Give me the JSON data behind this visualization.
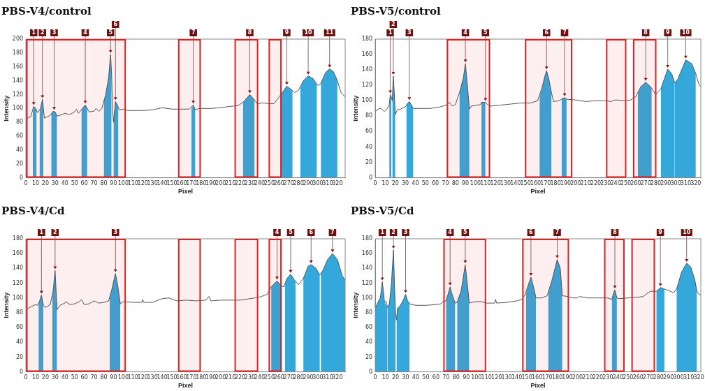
{
  "chart_data": [
    {
      "type": "line",
      "title": "PBS-V4/control",
      "xlabel": "Pixel",
      "ylabel": "Intensity",
      "legend": false,
      "xlim": [
        0,
        328
      ],
      "xticks": [
        0,
        10,
        20,
        30,
        40,
        50,
        60,
        70,
        80,
        90,
        100,
        110,
        120,
        130,
        140,
        150,
        160,
        170,
        180,
        190,
        200,
        210,
        220,
        230,
        240,
        250,
        260,
        270,
        280,
        290,
        300,
        310,
        320
      ],
      "ylim": [
        0,
        200
      ],
      "yticks": [
        0,
        20,
        40,
        60,
        80,
        100,
        120,
        140,
        160,
        180,
        200
      ],
      "bands": [
        {
          "axis": "x",
          "from": 1,
          "to": 102,
          "color": "#e02020"
        },
        {
          "axis": "x",
          "from": 157,
          "to": 179,
          "color": "#e02020"
        },
        {
          "axis": "x",
          "from": 215,
          "to": 238,
          "color": "#e02020"
        },
        {
          "axis": "x",
          "from": 250,
          "to": 262,
          "color": "#e02020"
        }
      ],
      "annotations": [
        {
          "text": "1",
          "x": 8,
          "y": 103
        },
        {
          "text": "2",
          "x": 17,
          "y": 113
        },
        {
          "text": "3",
          "x": 29,
          "y": 96
        },
        {
          "text": "4",
          "x": 61,
          "y": 105
        },
        {
          "text": "5",
          "x": 87,
          "y": 178
        },
        {
          "text": "6",
          "x": 92,
          "y": 110
        },
        {
          "text": "7",
          "x": 172,
          "y": 105
        },
        {
          "text": "8",
          "x": 230,
          "y": 120
        },
        {
          "text": "9",
          "x": 268,
          "y": 132
        },
        {
          "text": "10",
          "x": 290,
          "y": 147
        },
        {
          "text": "11",
          "x": 312,
          "y": 157
        }
      ],
      "series": [
        {
          "type": "line",
          "color": "#555555",
          "x": [
            0,
            5,
            8,
            10,
            12,
            15,
            17,
            18,
            19,
            22,
            25,
            28,
            30,
            32,
            35,
            40,
            45,
            50,
            52,
            54,
            58,
            61,
            63,
            65,
            70,
            72,
            75,
            78,
            82,
            85,
            87,
            88,
            89,
            90,
            92,
            94,
            96,
            100,
            105,
            120,
            130,
            140,
            150,
            160,
            168,
            172,
            174,
            178,
            190,
            200,
            210,
            218,
            224,
            230,
            235,
            238,
            242,
            250,
            255,
            262,
            268,
            272,
            276,
            280,
            285,
            290,
            295,
            300,
            303,
            308,
            312,
            316,
            320,
            324,
            328
          ],
          "values": [
            85,
            88,
            103,
            100,
            94,
            100,
            113,
            100,
            86,
            88,
            90,
            96,
            95,
            89,
            90,
            93,
            91,
            95,
            99,
            93,
            100,
            105,
            100,
            95,
            96,
            100,
            96,
            100,
            120,
            145,
            178,
            150,
            100,
            80,
            110,
            105,
            98,
            99,
            97,
            97,
            98,
            101,
            99,
            99,
            99,
            105,
            98,
            100,
            100,
            101,
            103,
            104,
            110,
            120,
            112,
            106,
            108,
            107,
            107,
            120,
            132,
            128,
            123,
            126,
            140,
            147,
            143,
            133,
            136,
            152,
            157,
            153,
            140,
            122,
            117
          ]
        },
        {
          "type": "area",
          "color": "#35a8db",
          "x": [
            7,
            8,
            10,
            11
          ],
          "values": [
            95,
            103,
            100,
            96
          ]
        },
        {
          "type": "area",
          "color": "#35a8db",
          "x": [
            14,
            15,
            17,
            18
          ],
          "values": [
            96,
            100,
            113,
            100
          ]
        },
        {
          "type": "area",
          "color": "#35a8db",
          "x": [
            26,
            28,
            30,
            32
          ],
          "values": [
            92,
            96,
            95,
            89
          ]
        },
        {
          "type": "area",
          "color": "#35a8db",
          "x": [
            57,
            58,
            61,
            63
          ],
          "values": [
            98,
            100,
            105,
            100
          ]
        },
        {
          "type": "area",
          "color": "#35a8db",
          "x": [
            80,
            82,
            85,
            87,
            88
          ],
          "values": [
            110,
            120,
            145,
            178,
            150
          ]
        },
        {
          "type": "area",
          "color": "#35a8db",
          "x": [
            90,
            92,
            94,
            95
          ],
          "values": [
            85,
            110,
            105,
            100
          ]
        },
        {
          "type": "area",
          "color": "#35a8db",
          "x": [
            170,
            172,
            174
          ],
          "values": [
            99,
            105,
            98
          ]
        },
        {
          "type": "area",
          "color": "#35a8db",
          "x": [
            223,
            224,
            230,
            235
          ],
          "values": [
            108,
            110,
            120,
            112
          ]
        },
        {
          "type": "area",
          "color": "#35a8db",
          "x": [
            262,
            268,
            272,
            274
          ],
          "values": [
            120,
            132,
            128,
            125
          ]
        },
        {
          "type": "area",
          "color": "#35a8db",
          "x": [
            282,
            285,
            290,
            295,
            299
          ],
          "values": [
            130,
            140,
            147,
            143,
            134
          ]
        },
        {
          "type": "area",
          "color": "#35a8db",
          "x": [
            303,
            308,
            312,
            316,
            320
          ],
          "values": [
            136,
            152,
            157,
            153,
            140
          ]
        }
      ]
    },
    {
      "type": "line",
      "title": "PBS-V5/control",
      "xlabel": "Pixel",
      "ylabel": "Intensity",
      "legend": false,
      "xlim": [
        0,
        325
      ],
      "xticks": [
        0,
        10,
        20,
        30,
        40,
        50,
        60,
        70,
        80,
        90,
        100,
        110,
        120,
        130,
        140,
        150,
        160,
        170,
        180,
        190,
        200,
        210,
        220,
        230,
        240,
        250,
        260,
        270,
        280,
        290,
        300,
        310,
        320
      ],
      "ylim": [
        0,
        180
      ],
      "yticks": [
        0,
        20,
        40,
        60,
        80,
        100,
        120,
        140,
        160,
        180
      ],
      "bands": [
        {
          "axis": "x",
          "from": 72,
          "to": 114,
          "color": "#e02020"
        },
        {
          "axis": "x",
          "from": 150,
          "to": 196,
          "color": "#e02020"
        },
        {
          "axis": "x",
          "from": 231,
          "to": 250,
          "color": "#e02020"
        },
        {
          "axis": "x",
          "from": 258,
          "to": 280,
          "color": "#e02020"
        }
      ],
      "annotations": [
        {
          "text": "1",
          "x": 15,
          "y": 108
        },
        {
          "text": "2",
          "x": 18,
          "y": 132
        },
        {
          "text": "3",
          "x": 34,
          "y": 99
        },
        {
          "text": "4",
          "x": 90,
          "y": 148
        },
        {
          "text": "5",
          "x": 110,
          "y": 98
        },
        {
          "text": "6",
          "x": 171,
          "y": 139
        },
        {
          "text": "7",
          "x": 189,
          "y": 104
        },
        {
          "text": "8",
          "x": 270,
          "y": 124
        },
        {
          "text": "9",
          "x": 292,
          "y": 141
        },
        {
          "text": "10",
          "x": 310,
          "y": 153
        }
      ],
      "series": [
        {
          "type": "line",
          "color": "#555555",
          "x": [
            0,
            4,
            6,
            9,
            12,
            14,
            15,
            16,
            17,
            18,
            19,
            20,
            22,
            25,
            30,
            34,
            38,
            45,
            55,
            65,
            72,
            74,
            77,
            80,
            84,
            88,
            90,
            92,
            94,
            96,
            105,
            106,
            110,
            112,
            115,
            130,
            145,
            155,
            162,
            166,
            170,
            171,
            173,
            176,
            178,
            184,
            187,
            189,
            191,
            200,
            210,
            220,
            230,
            235,
            240,
            250,
            255,
            260,
            265,
            270,
            275,
            280,
            285,
            292,
            296,
            299,
            302,
            310,
            316,
            320,
            323,
            325
          ],
          "values": [
            86,
            90,
            90,
            86,
            90,
            95,
            108,
            105,
            100,
            132,
            110,
            82,
            88,
            89,
            92,
            99,
            90,
            90,
            90,
            92,
            95,
            98,
            93,
            95,
            110,
            130,
            148,
            120,
            89,
            93,
            95,
            98,
            98,
            95,
            93,
            95,
            97,
            97,
            100,
            115,
            135,
            139,
            130,
            110,
            99,
            100,
            103,
            104,
            102,
            101,
            99,
            100,
            100,
            99,
            101,
            100,
            101,
            105,
            118,
            124,
            118,
            108,
            115,
            141,
            135,
            123,
            128,
            153,
            148,
            135,
            122,
            118
          ]
        },
        {
          "type": "area",
          "color": "#35a8db",
          "x": [
            14,
            15,
            16
          ],
          "values": [
            95,
            108,
            105
          ]
        },
        {
          "type": "area",
          "color": "#35a8db",
          "x": [
            17,
            18,
            19,
            20
          ],
          "values": [
            100,
            132,
            110,
            82
          ]
        },
        {
          "type": "area",
          "color": "#35a8db",
          "x": [
            31,
            34,
            38
          ],
          "values": [
            95,
            99,
            90
          ]
        },
        {
          "type": "area",
          "color": "#35a8db",
          "x": [
            84,
            88,
            90,
            92,
            94
          ],
          "values": [
            110,
            130,
            148,
            120,
            89
          ]
        },
        {
          "type": "area",
          "color": "#35a8db",
          "x": [
            106,
            110
          ],
          "values": [
            98,
            98
          ]
        },
        {
          "type": "area",
          "color": "#35a8db",
          "x": [
            164,
            166,
            170,
            171,
            173,
            176
          ],
          "values": [
            105,
            115,
            135,
            139,
            130,
            110
          ]
        },
        {
          "type": "area",
          "color": "#35a8db",
          "x": [
            186,
            187,
            189,
            191
          ],
          "values": [
            102,
            103,
            104,
            102
          ]
        },
        {
          "type": "area",
          "color": "#35a8db",
          "x": [
            262,
            265,
            270,
            275,
            276
          ],
          "values": [
            110,
            118,
            124,
            118,
            115
          ]
        },
        {
          "type": "area",
          "color": "#35a8db",
          "x": [
            285,
            292,
            296,
            299
          ],
          "values": [
            115,
            141,
            135,
            123
          ]
        },
        {
          "type": "area",
          "color": "#35a8db",
          "x": [
            299,
            302,
            310,
            316,
            320
          ],
          "values": [
            123,
            128,
            153,
            148,
            135
          ]
        }
      ]
    },
    {
      "type": "line",
      "title": "PBS-V4/Cd",
      "xlabel": "Pixel",
      "ylabel": "Intensity",
      "legend": false,
      "xlim": [
        0,
        328
      ],
      "xticks": [
        0,
        10,
        20,
        30,
        40,
        50,
        60,
        70,
        80,
        90,
        100,
        110,
        120,
        130,
        140,
        150,
        160,
        170,
        180,
        190,
        200,
        210,
        220,
        230,
        240,
        250,
        260,
        270,
        280,
        290,
        300,
        310,
        320
      ],
      "ylim": [
        0,
        180
      ],
      "yticks": [
        0,
        20,
        40,
        60,
        80,
        100,
        120,
        140,
        160,
        180
      ],
      "bands": [
        {
          "axis": "x",
          "from": 1,
          "to": 102,
          "color": "#e02020"
        },
        {
          "axis": "x",
          "from": 157,
          "to": 179,
          "color": "#e02020"
        },
        {
          "axis": "x",
          "from": 215,
          "to": 238,
          "color": "#e02020"
        },
        {
          "axis": "x",
          "from": 250,
          "to": 262,
          "color": "#e02020"
        }
      ],
      "annotations": [
        {
          "text": "1",
          "x": 16,
          "y": 104
        },
        {
          "text": "2",
          "x": 30,
          "y": 137
        },
        {
          "text": "3",
          "x": 92,
          "y": 133
        },
        {
          "text": "4",
          "x": 258,
          "y": 123
        },
        {
          "text": "5",
          "x": 272,
          "y": 132
        },
        {
          "text": "6",
          "x": 293,
          "y": 145
        },
        {
          "text": "7",
          "x": 315,
          "y": 160
        }
      ],
      "series": [
        {
          "type": "line",
          "color": "#555555",
          "x": [
            0,
            5,
            10,
            12,
            14,
            16,
            18,
            20,
            25,
            28,
            30,
            31,
            32,
            35,
            40,
            41,
            45,
            50,
            55,
            57,
            60,
            65,
            70,
            75,
            80,
            85,
            88,
            92,
            94,
            97,
            100,
            110,
            119,
            120,
            121,
            130,
            140,
            147,
            155,
            165,
            175,
            185,
            188,
            190,
            200,
            210,
            220,
            230,
            240,
            248,
            252,
            258,
            262,
            265,
            268,
            272,
            276,
            280,
            285,
            290,
            293,
            298,
            302,
            305,
            310,
            315,
            320,
            325,
            328
          ],
          "values": [
            84,
            88,
            91,
            90,
            95,
            104,
            90,
            87,
            91,
            110,
            137,
            110,
            84,
            90,
            93,
            95,
            91,
            92,
            95,
            98,
            91,
            92,
            96,
            93,
            94,
            96,
            110,
            133,
            120,
            92,
            95,
            94,
            94,
            98,
            94,
            94,
            99,
            100,
            96,
            97,
            96,
            97,
            102,
            96,
            97,
            97,
            97,
            99,
            101,
            105,
            115,
            123,
            117,
            115,
            126,
            132,
            124,
            118,
            126,
            143,
            145,
            140,
            131,
            137,
            152,
            160,
            152,
            130,
            124
          ]
        },
        {
          "type": "area",
          "color": "#35a8db",
          "x": [
            13,
            16,
            18
          ],
          "values": [
            93,
            104,
            90
          ]
        },
        {
          "type": "area",
          "color": "#35a8db",
          "x": [
            27,
            28,
            30,
            31,
            32
          ],
          "values": [
            100,
            110,
            137,
            110,
            84
          ]
        },
        {
          "type": "area",
          "color": "#35a8db",
          "x": [
            86,
            88,
            92,
            94,
            97
          ],
          "values": [
            100,
            110,
            133,
            120,
            92
          ]
        },
        {
          "type": "area",
          "color": "#35a8db",
          "x": [
            252,
            258,
            262,
            263
          ],
          "values": [
            115,
            123,
            117,
            116
          ]
        },
        {
          "type": "area",
          "color": "#35a8db",
          "x": [
            266,
            268,
            272,
            276,
            277
          ],
          "values": [
            118,
            126,
            132,
            124,
            122
          ]
        },
        {
          "type": "area",
          "color": "#35a8db",
          "x": [
            285,
            290,
            293,
            298,
            302
          ],
          "values": [
            126,
            143,
            145,
            140,
            131
          ]
        },
        {
          "type": "area",
          "color": "#35a8db",
          "x": [
            303,
            305,
            310,
            315,
            320,
            325,
            328
          ],
          "values": [
            133,
            137,
            152,
            160,
            152,
            130,
            124
          ]
        }
      ]
    },
    {
      "type": "line",
      "title": "PBS-V5/Cd",
      "xlabel": "Pixel",
      "ylabel": "Intensity",
      "legend": false,
      "xlim": [
        0,
        322
      ],
      "xticks": [
        0,
        10,
        20,
        30,
        40,
        50,
        60,
        70,
        80,
        90,
        100,
        110,
        120,
        130,
        140,
        150,
        160,
        170,
        180,
        190,
        200,
        210,
        220,
        230,
        240,
        250,
        260,
        270,
        280,
        290,
        300,
        310,
        320
      ],
      "ylim": [
        0,
        180
      ],
      "yticks": [
        0,
        20,
        40,
        60,
        80,
        100,
        120,
        140,
        160,
        180
      ],
      "bands": [
        {
          "axis": "x",
          "from": 68,
          "to": 109,
          "color": "#e02020"
        },
        {
          "axis": "x",
          "from": 146,
          "to": 191,
          "color": "#e02020"
        },
        {
          "axis": "x",
          "from": 227,
          "to": 246,
          "color": "#e02020"
        },
        {
          "axis": "x",
          "from": 254,
          "to": 276,
          "color": "#e02020"
        }
      ],
      "annotations": [
        {
          "text": "1",
          "x": 7,
          "y": 122
        },
        {
          "text": "2",
          "x": 18,
          "y": 165
        },
        {
          "text": "3",
          "x": 30,
          "y": 105
        },
        {
          "text": "4",
          "x": 74,
          "y": 115
        },
        {
          "text": "5",
          "x": 89,
          "y": 145
        },
        {
          "text": "6",
          "x": 154,
          "y": 128
        },
        {
          "text": "7",
          "x": 180,
          "y": 152
        },
        {
          "text": "8",
          "x": 237,
          "y": 111
        },
        {
          "text": "9",
          "x": 282,
          "y": 114
        },
        {
          "text": "10",
          "x": 308,
          "y": 147
        }
      ],
      "series": [
        {
          "type": "line",
          "color": "#555555",
          "x": [
            0,
            3,
            5,
            7,
            8,
            9,
            11,
            12,
            14,
            16,
            18,
            19,
            20,
            21,
            22,
            25,
            28,
            30,
            32,
            34,
            40,
            50,
            60,
            65,
            67,
            70,
            72,
            74,
            76,
            79,
            81,
            85,
            89,
            91,
            93,
            95,
            100,
            105,
            110,
            118,
            119,
            120,
            130,
            140,
            145,
            148,
            152,
            154,
            156,
            159,
            165,
            170,
            175,
            180,
            183,
            185,
            190,
            195,
            200,
            202,
            210,
            220,
            230,
            234,
            236,
            237,
            239,
            241,
            250,
            260,
            265,
            272,
            278,
            282,
            286,
            290,
            295,
            298,
            303,
            308,
            312,
            316,
            318,
            320,
            322
          ],
          "values": [
            86,
            95,
            100,
            122,
            110,
            96,
            95,
            87,
            92,
            120,
            165,
            120,
            80,
            70,
            86,
            90,
            98,
            105,
            96,
            92,
            90,
            90,
            91,
            92,
            95,
            96,
            105,
            115,
            105,
            93,
            94,
            110,
            145,
            120,
            93,
            94,
            95,
            95,
            93,
            93,
            98,
            93,
            94,
            96,
            98,
            104,
            120,
            128,
            118,
            100,
            100,
            103,
            125,
            152,
            140,
            103,
            102,
            100,
            100,
            102,
            100,
            100,
            100,
            98,
            108,
            111,
            100,
            99,
            100,
            101,
            102,
            109,
            109,
            114,
            112,
            110,
            107,
            112,
            135,
            147,
            142,
            125,
            110,
            105,
            104
          ]
        },
        {
          "type": "area",
          "color": "#35a8db",
          "x": [
            0,
            3,
            5,
            7,
            8,
            9,
            12
          ],
          "values": [
            86,
            95,
            100,
            122,
            110,
            96,
            87
          ]
        },
        {
          "type": "area",
          "color": "#35a8db",
          "x": [
            12,
            14,
            16,
            18,
            19,
            20
          ],
          "values": [
            87,
            92,
            120,
            165,
            120,
            80
          ]
        },
        {
          "type": "area",
          "color": "#35a8db",
          "x": [
            21,
            22,
            25,
            28,
            30,
            32,
            34
          ],
          "values": [
            70,
            86,
            90,
            98,
            105,
            96,
            92
          ]
        },
        {
          "type": "area",
          "color": "#35a8db",
          "x": [
            70,
            72,
            74,
            76,
            79
          ],
          "values": [
            96,
            105,
            115,
            105,
            93
          ]
        },
        {
          "type": "area",
          "color": "#35a8db",
          "x": [
            81,
            85,
            89,
            91,
            93
          ],
          "values": [
            94,
            110,
            145,
            120,
            93
          ]
        },
        {
          "type": "area",
          "color": "#35a8db",
          "x": [
            149,
            152,
            154,
            156,
            159
          ],
          "values": [
            106,
            120,
            128,
            118,
            100
          ]
        },
        {
          "type": "area",
          "color": "#35a8db",
          "x": [
            171,
            175,
            180,
            183,
            185
          ],
          "values": [
            106,
            125,
            152,
            140,
            103
          ]
        },
        {
          "type": "area",
          "color": "#35a8db",
          "x": [
            234,
            236,
            237,
            239
          ],
          "values": [
            98,
            108,
            111,
            100
          ]
        },
        {
          "type": "area",
          "color": "#35a8db",
          "x": [
            278,
            282,
            286
          ],
          "values": [
            109,
            114,
            112
          ]
        },
        {
          "type": "area",
          "color": "#35a8db",
          "x": [
            298,
            303,
            308,
            312,
            316,
            318
          ],
          "values": [
            112,
            135,
            147,
            142,
            125,
            110
          ]
        }
      ]
    }
  ]
}
